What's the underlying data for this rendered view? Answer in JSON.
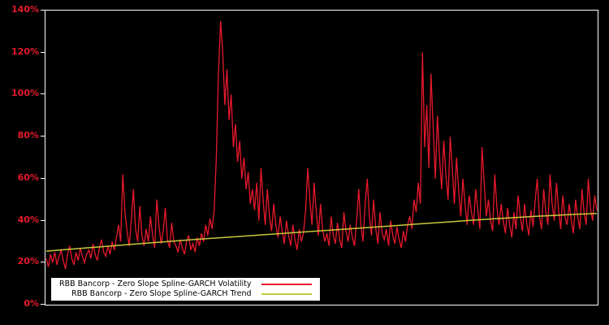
{
  "window": {
    "background": "#000000"
  },
  "chart_data": {
    "type": "line",
    "title": "",
    "xlabel": "",
    "ylabel": "",
    "ylim": [
      0,
      140
    ],
    "grid": false,
    "legend_position": "bottom-left-inside",
    "plot_background": "#000000",
    "border_color": "#ffffff",
    "axis_label_color": "#e8192c",
    "ytick_values": [
      0,
      20,
      40,
      60,
      80,
      100,
      120,
      140
    ],
    "ytick_labels": [
      "0%",
      "20%",
      "40%",
      "60%",
      "80%",
      "100%",
      "120%",
      "140%"
    ],
    "series": [
      {
        "name": "RBB Bancorp - Zero Slope Spline-GARCH Volatility",
        "color": "#e8192c",
        "values": [
          22,
          18,
          24,
          20,
          25,
          19,
          23,
          26,
          21,
          17,
          24,
          28,
          22,
          19,
          25,
          21,
          27,
          23,
          20,
          24,
          26,
          22,
          29,
          24,
          21,
          27,
          31,
          25,
          23,
          28,
          24,
          30,
          26,
          32,
          38,
          30,
          62,
          44,
          35,
          28,
          40,
          55,
          36,
          30,
          47,
          33,
          28,
          36,
          30,
          42,
          33,
          27,
          50,
          38,
          29,
          35,
          46,
          31,
          27,
          39,
          30,
          28,
          25,
          31,
          27,
          24,
          30,
          33,
          26,
          29,
          25,
          32,
          28,
          34,
          30,
          38,
          33,
          41,
          36,
          45,
          70,
          110,
          135,
          120,
          95,
          112,
          88,
          100,
          75,
          86,
          68,
          78,
          60,
          70,
          55,
          63,
          48,
          55,
          45,
          58,
          40,
          65,
          50,
          38,
          55,
          42,
          35,
          48,
          38,
          32,
          42,
          35,
          29,
          40,
          33,
          28,
          38,
          31,
          26,
          36,
          30,
          34,
          45,
          65,
          50,
          38,
          58,
          44,
          33,
          48,
          36,
          30,
          34,
          28,
          42,
          33,
          29,
          39,
          31,
          27,
          44,
          35,
          30,
          38,
          32,
          28,
          40,
          55,
          38,
          30,
          48,
          60,
          42,
          33,
          50,
          36,
          29,
          44,
          34,
          31,
          36,
          28,
          40,
          33,
          29,
          37,
          31,
          27,
          35,
          30,
          38,
          42,
          36,
          50,
          44,
          58,
          48,
          120,
          75,
          95,
          65,
          110,
          85,
          60,
          90,
          70,
          55,
          78,
          62,
          50,
          80,
          65,
          48,
          70,
          55,
          42,
          60,
          48,
          38,
          52,
          44,
          38,
          55,
          45,
          36,
          75,
          58,
          42,
          50,
          40,
          35,
          62,
          46,
          38,
          48,
          40,
          34,
          46,
          38,
          32,
          44,
          36,
          52,
          42,
          35,
          48,
          39,
          33,
          45,
          37,
          50,
          60,
          42,
          36,
          55,
          44,
          38,
          62,
          48,
          40,
          58,
          45,
          36,
          52,
          42,
          38,
          48,
          40,
          34,
          50,
          42,
          36,
          55,
          44,
          38,
          60,
          46,
          40,
          52,
          45
        ]
      },
      {
        "name": "RBB Bancorp - Zero Slope Spline-GARCH Trend",
        "color": "#c8c83c",
        "values": [
          25.5,
          26.3,
          27.1,
          27.9,
          28.7,
          29.5,
          30.3,
          31.0,
          31.7,
          32.4,
          33.1,
          33.8,
          34.5,
          35.2,
          35.9,
          36.6,
          37.3,
          38.0,
          38.7,
          39.4,
          40.1,
          40.8,
          41.4,
          42.0,
          42.5,
          43.0,
          43.4
        ]
      }
    ]
  }
}
